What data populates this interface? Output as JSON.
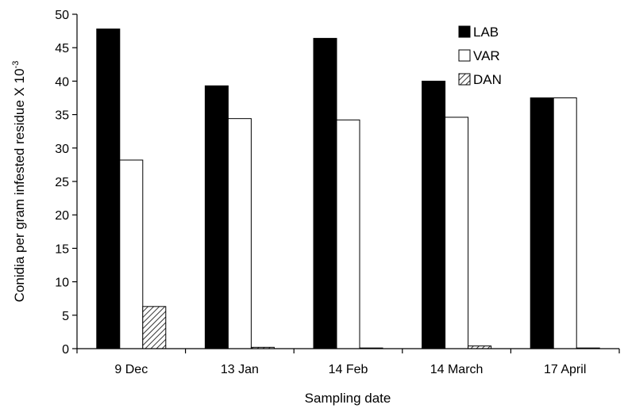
{
  "chart_data": {
    "type": "bar",
    "categories": [
      "9 Dec",
      "13 Jan",
      "14 Feb",
      "14 March",
      "17 April"
    ],
    "series": [
      {
        "name": "LAB",
        "fill": "#000000",
        "pattern": "solid",
        "values": [
          47.8,
          39.3,
          46.4,
          40.0,
          37.5
        ]
      },
      {
        "name": "VAR",
        "fill": "#ffffff",
        "pattern": "solid",
        "values": [
          28.2,
          34.4,
          34.2,
          34.6,
          37.5
        ]
      },
      {
        "name": "DAN",
        "fill": "#ffffff",
        "pattern": "diagonal-hatch",
        "values": [
          6.3,
          0.2,
          0.1,
          0.4,
          0.1
        ]
      }
    ],
    "xlabel": "Sampling date",
    "ylabel_main": "Conidia per gram infested residue X 10",
    "ylabel_superscript": "-3",
    "ylim": [
      0,
      50
    ],
    "yticks": [
      0,
      5,
      10,
      15,
      20,
      25,
      30,
      35,
      40,
      45,
      50
    ],
    "grid": false,
    "legend_position": "top-right"
  }
}
